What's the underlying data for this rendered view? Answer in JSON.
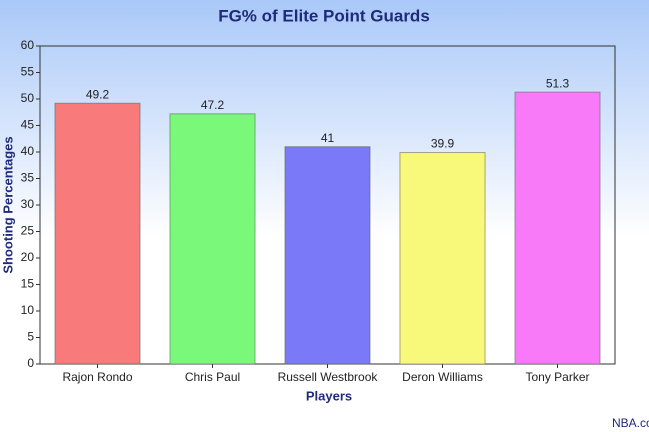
{
  "chart_data": {
    "type": "bar",
    "title": "FG% of Elite Point Guards",
    "x_label": "Players",
    "y_label": "Shooting Percentages",
    "categories": [
      "Rajon Rondo",
      "Chris Paul",
      "Russell Westbrook",
      "Deron Williams",
      "Tony Parker"
    ],
    "values": [
      49.2,
      47.2,
      41,
      39.9,
      51.3
    ],
    "colors": [
      "#f87a7a",
      "#7af87a",
      "#7a7af8",
      "#f8f87a",
      "#f87af8"
    ],
    "ylim": [
      0,
      60
    ],
    "yticks": [
      0,
      5,
      10,
      15,
      20,
      25,
      30,
      35,
      40,
      45,
      50,
      55,
      60
    ],
    "grid": false,
    "source": "NBA.co"
  }
}
